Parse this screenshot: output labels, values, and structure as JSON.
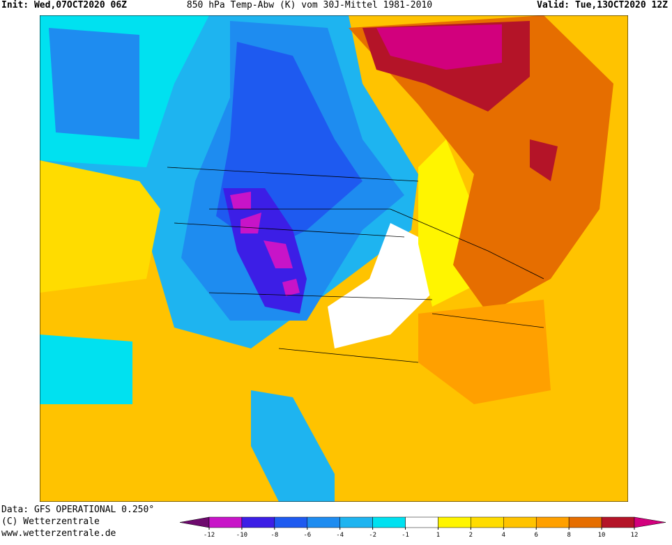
{
  "header": {
    "init": "Init: Wed,07OCT2020 06Z",
    "title": "850 hPa Temp-Abw (K) vom 30J-Mittel 1981-2010",
    "valid": "Valid: Tue,13OCT2020 12Z"
  },
  "footer": {
    "data": "Data: GFS OPERATIONAL 0.250°",
    "copyright": "(C) Wetterzentrale",
    "url": "www.wetterzentrale.de"
  },
  "legend": {
    "levels": [
      -12,
      -10,
      -8,
      -6,
      -4,
      -2,
      -1,
      1,
      2,
      4,
      6,
      8,
      10,
      12
    ],
    "colors": [
      "#6e0a6e",
      "#c814c8",
      "#3c1ee6",
      "#1e5af0",
      "#1e8cf0",
      "#1eb4f0",
      "#00e1f0",
      "#ffffff",
      "#fff500",
      "#ffdc00",
      "#ffc300",
      "#ffa000",
      "#e66e00",
      "#b41428",
      "#d2007d"
    ]
  }
}
